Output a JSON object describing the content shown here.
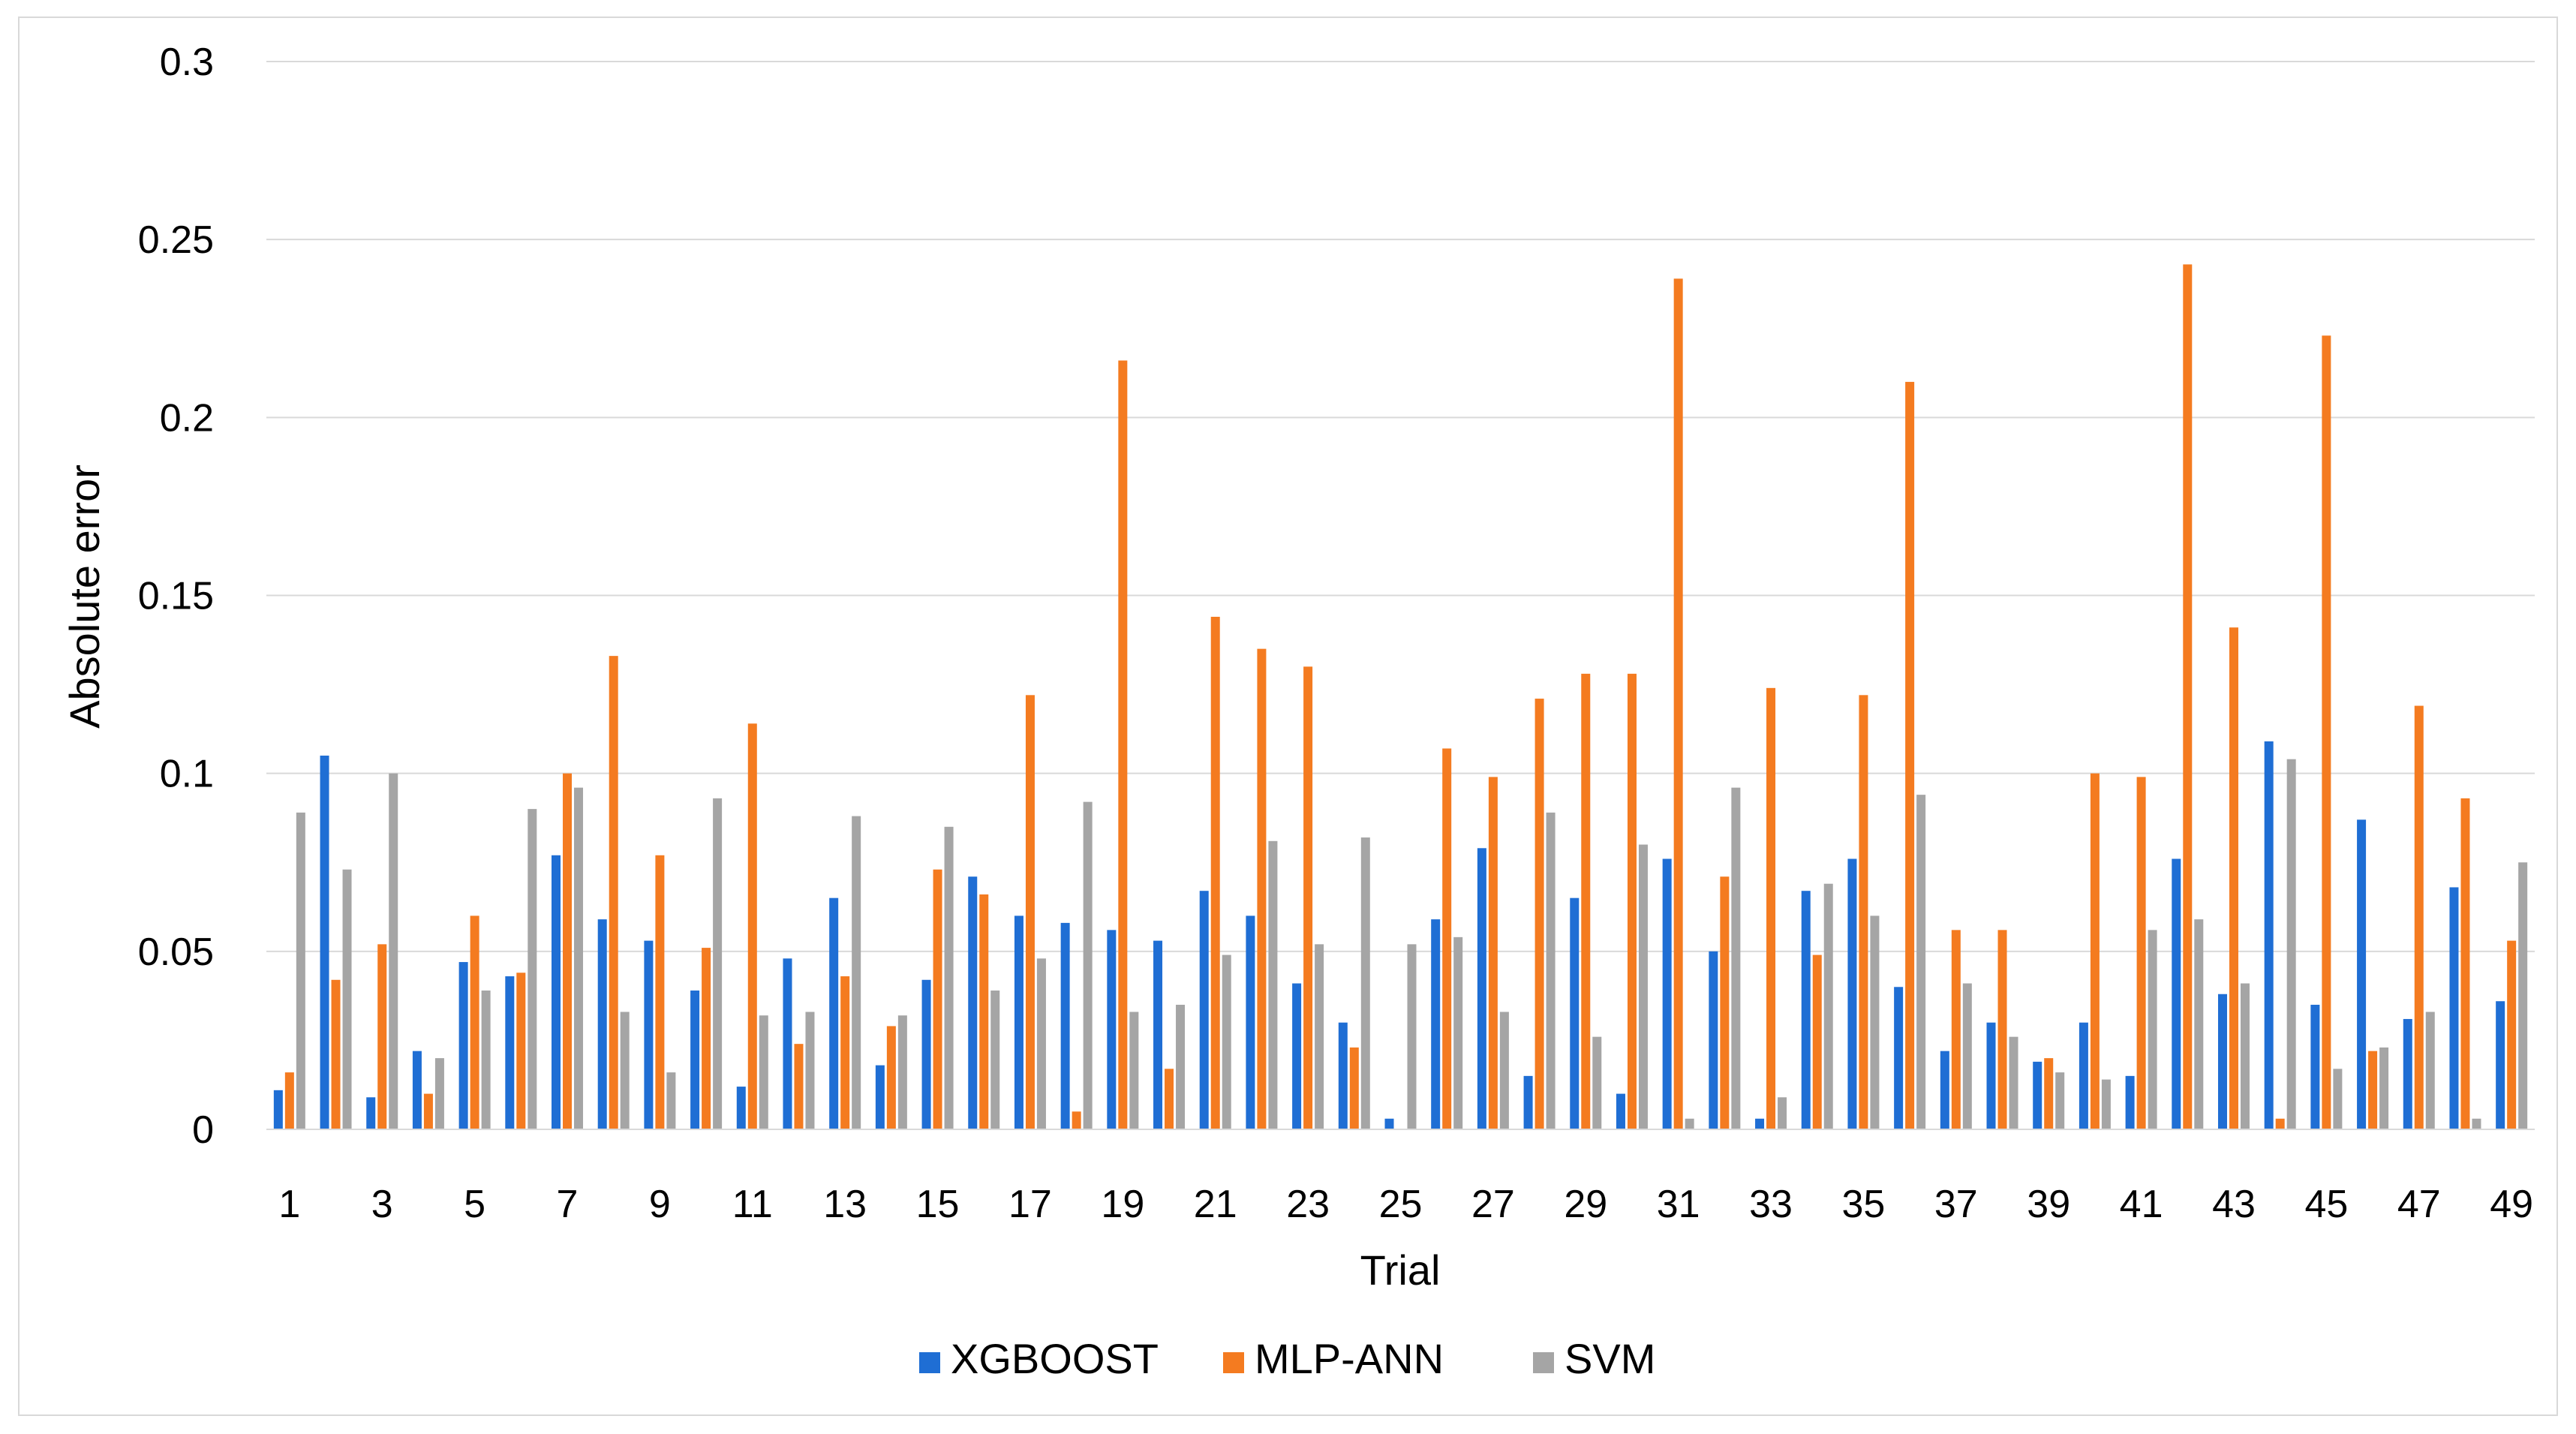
{
  "chart_data": {
    "type": "bar",
    "title": "",
    "xlabel": "Trial",
    "ylabel": "Absolute error",
    "ylim": [
      0,
      0.3
    ],
    "yticks": [
      "0",
      "0.05",
      "0.1",
      "0.15",
      "0.2",
      "0.25",
      "0.3"
    ],
    "grid": true,
    "legend_position": "bottom",
    "categories": [
      "1",
      "2",
      "3",
      "4",
      "5",
      "6",
      "7",
      "8",
      "9",
      "10",
      "11",
      "12",
      "13",
      "14",
      "15",
      "16",
      "17",
      "18",
      "19",
      "20",
      "21",
      "22",
      "23",
      "24",
      "25",
      "26",
      "27",
      "28",
      "29",
      "30",
      "31",
      "32",
      "33",
      "34",
      "35",
      "36",
      "37",
      "38",
      "39",
      "40",
      "41",
      "42",
      "43",
      "44",
      "45",
      "46",
      "47",
      "48",
      "49"
    ],
    "xtick_labels_shown": [
      "1",
      "3",
      "5",
      "7",
      "9",
      "11",
      "13",
      "15",
      "17",
      "19",
      "21",
      "23",
      "25",
      "27",
      "29",
      "31",
      "33",
      "35",
      "37",
      "39",
      "41",
      "43",
      "45",
      "47",
      "49"
    ],
    "series": [
      {
        "name": "XGBOOST",
        "color": "#1f6ed4",
        "values": [
          0.011,
          0.105,
          0.009,
          0.022,
          0.047,
          0.043,
          0.077,
          0.059,
          0.053,
          0.039,
          0.012,
          0.048,
          0.065,
          0.018,
          0.042,
          0.071,
          0.06,
          0.058,
          0.056,
          0.053,
          0.067,
          0.06,
          0.041,
          0.03,
          0.003,
          0.059,
          0.079,
          0.015,
          0.065,
          0.01,
          0.076,
          0.05,
          0.003,
          0.067,
          0.076,
          0.04,
          0.022,
          0.03,
          0.019,
          0.03,
          0.015,
          0.076,
          0.038,
          0.109,
          0.035,
          0.087,
          0.031,
          0.068,
          0.036
        ]
      },
      {
        "name": "MLP-ANN",
        "color": "#f47b20",
        "values": [
          0.016,
          0.042,
          0.052,
          0.01,
          0.06,
          0.044,
          0.1,
          0.133,
          0.077,
          0.051,
          0.114,
          0.024,
          0.043,
          0.029,
          0.073,
          0.066,
          0.122,
          0.005,
          0.216,
          0.017,
          0.144,
          0.135,
          0.13,
          0.023,
          0.0,
          0.107,
          0.099,
          0.121,
          0.128,
          0.128,
          0.239,
          0.071,
          0.124,
          0.049,
          0.122,
          0.21,
          0.056,
          0.056,
          0.02,
          0.1,
          0.099,
          0.243,
          0.141,
          0.003,
          0.223,
          0.022,
          0.119,
          0.093,
          0.053
        ]
      },
      {
        "name": "SVM",
        "color": "#a5a5a5",
        "values": [
          0.089,
          0.073,
          0.1,
          0.02,
          0.039,
          0.09,
          0.096,
          0.033,
          0.016,
          0.093,
          0.032,
          0.033,
          0.088,
          0.032,
          0.085,
          0.039,
          0.048,
          0.092,
          0.033,
          0.035,
          0.049,
          0.081,
          0.052,
          0.082,
          0.052,
          0.054,
          0.033,
          0.089,
          0.026,
          0.08,
          0.003,
          0.096,
          0.009,
          0.069,
          0.06,
          0.094,
          0.041,
          0.026,
          0.016,
          0.014,
          0.056,
          0.059,
          0.041,
          0.104,
          0.017,
          0.023,
          0.033,
          0.003,
          0.075
        ]
      }
    ]
  }
}
